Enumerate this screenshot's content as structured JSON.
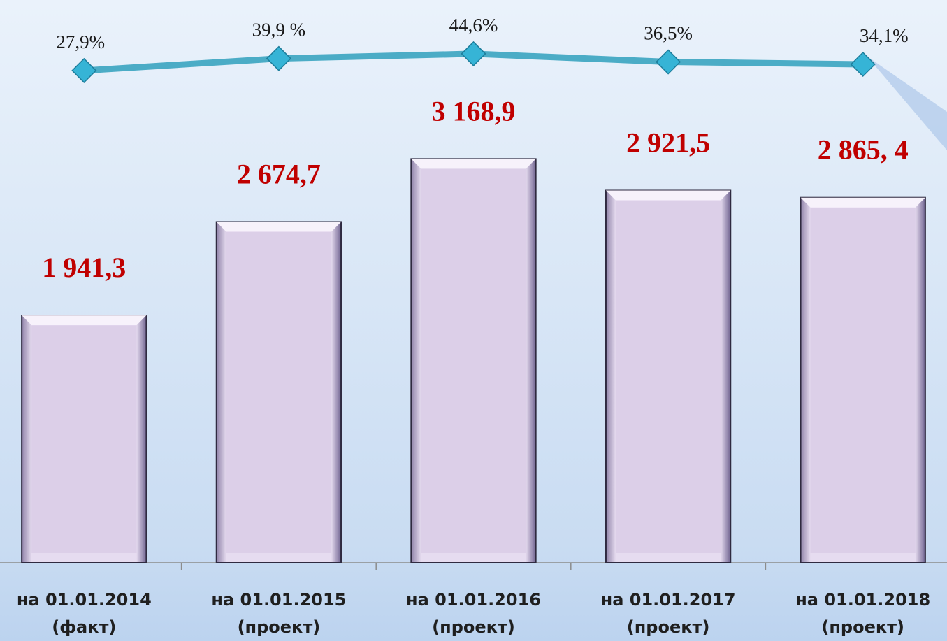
{
  "chart_data": {
    "type": "bar",
    "categories": [
      [
        "на 01.01.2014",
        "(факт)"
      ],
      [
        "на 01.01.2015",
        "(проект)"
      ],
      [
        "на 01.01.2016",
        "(проект)"
      ],
      [
        "на 01.01.2017",
        "(проект)"
      ],
      [
        "на 01.01.2018",
        "(проект)"
      ]
    ],
    "series": [
      {
        "values": [
          1941.3,
          2674.7,
          3168.9,
          2921.5,
          2865.4
        ],
        "value_labels": [
          "1 941,3",
          "2 674,7",
          "3 168,9",
          "2 921,5",
          "2 865, 4"
        ],
        "color": "#dccfe8"
      },
      {
        "type": "line",
        "axis": "y2",
        "values": [
          27.9,
          39.9,
          44.6,
          36.5,
          34.1
        ],
        "value_labels": [
          "27,9%",
          "39,9 %",
          "44,6%",
          "36,5%",
          "34,1%"
        ],
        "color": "#4bacc6"
      }
    ],
    "ylim": [
      0,
      4400
    ],
    "y2lim": [
      0,
      100
    ]
  }
}
